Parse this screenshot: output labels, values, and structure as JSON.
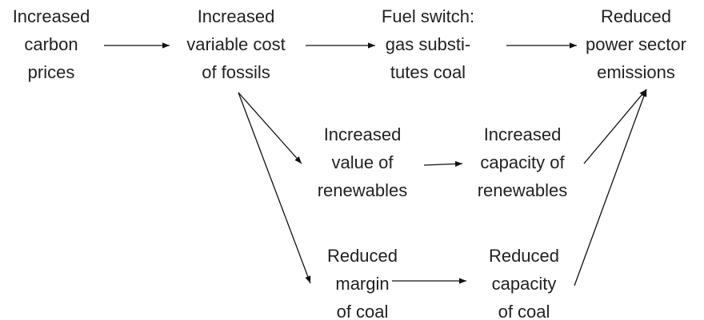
{
  "nodes": [
    {
      "lines": [
        "Increased",
        "carbon",
        "prices"
      ]
    },
    {
      "lines": [
        "Increased",
        "variable cost",
        "of fossils"
      ]
    },
    {
      "lines": [
        "Fuel switch:",
        "gas substi-",
        "tutes coal"
      ]
    },
    {
      "lines": [
        "Reduced",
        "power sector",
        "emissions"
      ]
    },
    {
      "lines": [
        "Increased",
        "value of",
        "renewables"
      ]
    },
    {
      "lines": [
        "Increased",
        "capacity of",
        "renewables"
      ]
    },
    {
      "lines": [
        "Reduced",
        "margin",
        "of coal"
      ]
    },
    {
      "lines": [
        "Reduced",
        "capacity",
        "of coal"
      ]
    }
  ]
}
